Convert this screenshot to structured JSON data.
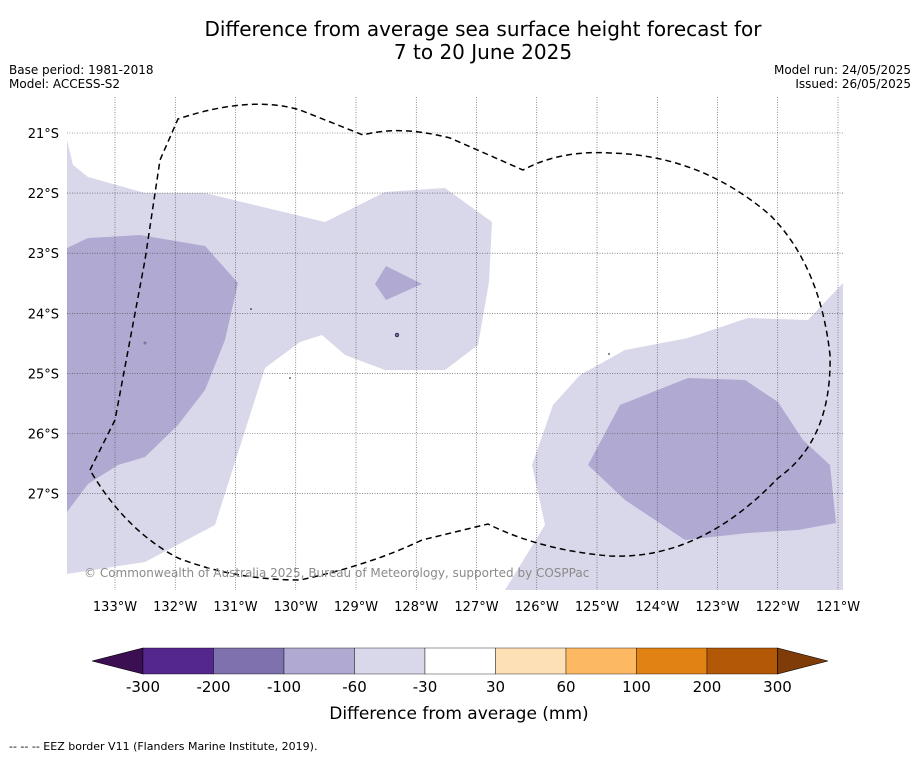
{
  "title": {
    "line1": "Difference from average sea surface height forecast for",
    "line2": "7 to 20 June 2025"
  },
  "meta_left": {
    "base_period": "Base period: 1981-2018",
    "model": "Model: ACCESS-S2"
  },
  "meta_right": {
    "model_run": "Model run: 24/05/2025",
    "issued": "Issued: 26/05/2025"
  },
  "map": {
    "lon_ticks": [
      "133°W",
      "132°W",
      "131°W",
      "130°W",
      "129°W",
      "128°W",
      "127°W",
      "126°W",
      "125°W",
      "124°W",
      "123°W",
      "122°W",
      "121°W"
    ],
    "lat_ticks": [
      "21°S",
      "22°S",
      "23°S",
      "24°S",
      "25°S",
      "26°S",
      "27°S"
    ],
    "copyright": "© Commonwealth of Australia 2025, Bureau of Meteorology, supported by COSPPac"
  },
  "colorbar": {
    "title": "Difference from average (mm)",
    "labels": [
      "-300",
      "-200",
      "-100",
      "-60",
      "-30",
      "30",
      "60",
      "100",
      "200",
      "300"
    ],
    "colors": {
      "lt_-300": "#3b0f52",
      "-300_-200": "#54278f",
      "-200_-100": "#7f70ae",
      "-100_-60": "#b0a9d1",
      "-60_-30": "#d9d8ea",
      "-30_30": "#ffffff",
      "30_60": "#fee0b6",
      "60_100": "#fdb863",
      "100_200": "#e08214",
      "200_300": "#b35806",
      "gt_300": "#7f3b08"
    }
  },
  "footer": "--  --  -- EEZ border V11 (Flanders Marine Institute, 2019)."
}
